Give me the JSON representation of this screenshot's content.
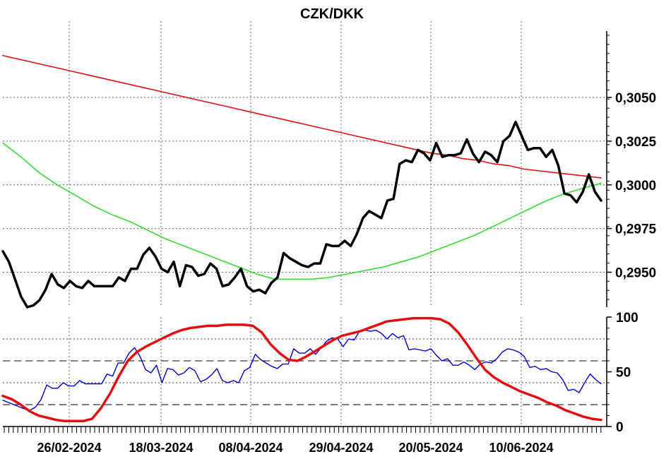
{
  "chart_data": {
    "title": "CZK/DKK",
    "type": "line",
    "x_labels": [
      "26/02-2024",
      "18/03-2024",
      "08/04-2024",
      "29/04-2024",
      "20/05-2024",
      "10/06-2024"
    ],
    "main": {
      "y_ticks": [
        "0,3050",
        "0,3025",
        "0,3000",
        "0,2975",
        "0,2950"
      ],
      "ylim": [
        0.293,
        0.3088
      ],
      "grid": "dotted vertical and horizontal",
      "series": [
        {
          "color": "#000000",
          "values": [
            0.2962,
            0.2956,
            0.2946,
            0.2936,
            0.293,
            0.2931,
            0.2934,
            0.294,
            0.2949,
            0.2943,
            0.2941,
            0.2945,
            0.2942,
            0.2941,
            0.2945,
            0.2942,
            0.2942,
            0.2942,
            0.2942,
            0.2947,
            0.2945,
            0.2952,
            0.2952,
            0.296,
            0.2964,
            0.2959,
            0.2952,
            0.295,
            0.2956,
            0.2942,
            0.2954,
            0.2953,
            0.2948,
            0.2949,
            0.2955,
            0.2952,
            0.2942,
            0.2943,
            0.2947,
            0.2952,
            0.2942,
            0.2939,
            0.294,
            0.2938,
            0.2944,
            0.2947,
            0.2961,
            0.2958,
            0.2956,
            0.2954,
            0.2953,
            0.2955,
            0.2955,
            0.2966,
            0.2965,
            0.2965,
            0.2968,
            0.2965,
            0.2972,
            0.2981,
            0.2985,
            0.2983,
            0.2981,
            0.2991,
            0.2992,
            0.3012,
            0.3014,
            0.3013,
            0.302,
            0.3018,
            0.3014,
            0.3024,
            0.3016,
            0.3017,
            0.3017,
            0.3018,
            0.3026,
            0.3018,
            0.3013,
            0.3019,
            0.3017,
            0.3013,
            0.3025,
            0.3028,
            0.3036,
            0.3028,
            0.302,
            0.3021,
            0.3021,
            0.3016,
            0.302,
            0.3011,
            0.2995,
            0.2994,
            0.299,
            0.2996,
            0.3006,
            0.2996,
            0.2991
          ]
        },
        {
          "color": "#e01010",
          "values": [
            0.3074,
            0.3072,
            0.307,
            0.3068,
            0.3066,
            0.3064,
            0.3062,
            0.306,
            0.3058,
            0.3056,
            0.3054,
            0.3052,
            0.305,
            0.3048,
            0.3046,
            0.3044,
            0.3042,
            0.304,
            0.3038,
            0.3036,
            0.3034,
            0.3032,
            0.303,
            0.3028,
            0.3026,
            0.3024,
            0.3022,
            0.302,
            0.3018,
            0.3017,
            0.3015,
            0.3014,
            0.3012,
            0.3011,
            0.3009,
            0.3008,
            0.3007,
            0.3006,
            0.3005,
            0.3004
          ]
        },
        {
          "color": "#33dd33",
          "values": [
            0.3024,
            0.3016,
            0.3007,
            0.3,
            0.2994,
            0.2988,
            0.2983,
            0.2979,
            0.2974,
            0.2969,
            0.2965,
            0.2961,
            0.2957,
            0.2953,
            0.2949,
            0.2946,
            0.2946,
            0.2946,
            0.2947,
            0.2949,
            0.2951,
            0.2953,
            0.2956,
            0.2959,
            0.2963,
            0.2967,
            0.2971,
            0.2976,
            0.2981,
            0.2986,
            0.2991,
            0.2995,
            0.2998,
            0.3001
          ]
        }
      ]
    },
    "indicator": {
      "y_ticks": [
        "100",
        "50",
        "0"
      ],
      "ylim": [
        0,
        100
      ],
      "dotted_levels": [
        80,
        40
      ],
      "dashed_levels": [
        60,
        20
      ],
      "series": [
        {
          "color": "#0000cc",
          "values": [
            24,
            22,
            20,
            18,
            16,
            15,
            18,
            25,
            38,
            35,
            35,
            40,
            37,
            37,
            42,
            39,
            39,
            39,
            39,
            48,
            46,
            58,
            58,
            67,
            72,
            64,
            52,
            49,
            56,
            40,
            53,
            52,
            47,
            49,
            54,
            51,
            41,
            43,
            47,
            53,
            42,
            40,
            42,
            40,
            51,
            54,
            66,
            61,
            58,
            55,
            53,
            57,
            57,
            71,
            67,
            67,
            71,
            66,
            72,
            78,
            81,
            80,
            73,
            80,
            79,
            87,
            88,
            87,
            88,
            85,
            80,
            85,
            81,
            83,
            70,
            71,
            70,
            69,
            71,
            65,
            60,
            62,
            56,
            56,
            59,
            56,
            52,
            57,
            59,
            58,
            62,
            68,
            71,
            70,
            68,
            64,
            54,
            55,
            52,
            53,
            50,
            49,
            43,
            33,
            34,
            31,
            40,
            48,
            43,
            39
          ]
        },
        {
          "color": "#e01010",
          "values": [
            28,
            25,
            20,
            14,
            10,
            8,
            6,
            5,
            5,
            5,
            7,
            17,
            30,
            46,
            60,
            68,
            73,
            77,
            81,
            85,
            88,
            90,
            91,
            92,
            92,
            93,
            93,
            93,
            92,
            86,
            75,
            67,
            61,
            60,
            64,
            69,
            74,
            79,
            83,
            85,
            87,
            90,
            93,
            96,
            97,
            98,
            99,
            99,
            99,
            98,
            94,
            86,
            75,
            63,
            52,
            45,
            40,
            36,
            32,
            29,
            26,
            22,
            19,
            15,
            12,
            9,
            7,
            6
          ]
        }
      ]
    }
  }
}
